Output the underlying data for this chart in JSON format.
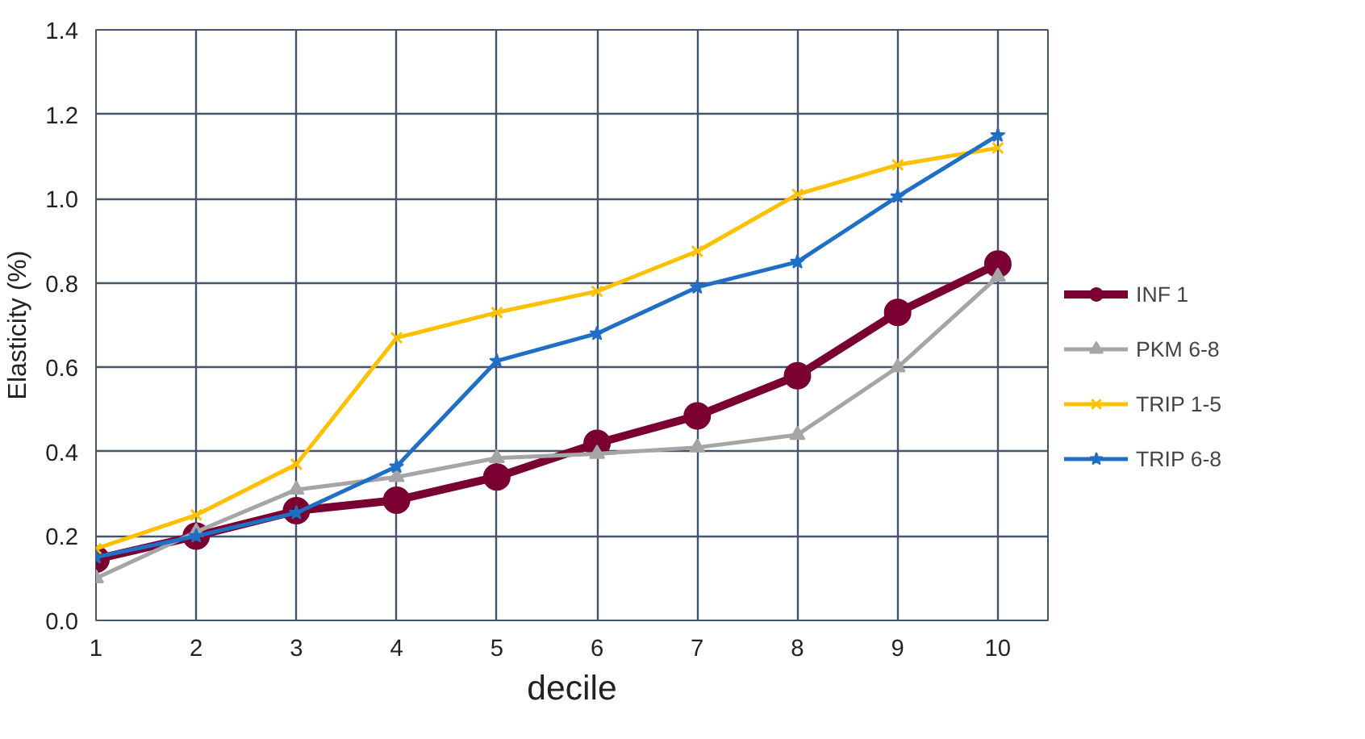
{
  "chart_data": {
    "type": "line",
    "xlabel": "decile",
    "ylabel": "Elasticity (%)",
    "x": [
      1,
      2,
      3,
      4,
      5,
      6,
      7,
      8,
      9,
      10
    ],
    "xlim": [
      1,
      10.5
    ],
    "xticks": [
      1,
      2,
      3,
      4,
      5,
      6,
      7,
      8,
      9,
      10
    ],
    "ylim": [
      0,
      1.4
    ],
    "yticks": [
      {
        "value": 0,
        "label": "0.0"
      },
      {
        "value": 0.2,
        "label": "0.2"
      },
      {
        "value": 0.4,
        "label": "0.4"
      },
      {
        "value": 0.6,
        "label": "0.6"
      },
      {
        "value": 0.8,
        "label": "0.8"
      },
      {
        "value": 1,
        "label": "1.0"
      },
      {
        "value": 1.2,
        "label": "1.2"
      },
      {
        "value": 1.4,
        "label": "1.4"
      }
    ],
    "grid": true,
    "legend": "right",
    "line_style": "solid",
    "series": [
      {
        "name": "INF 1",
        "color": "#7b0032",
        "marker": "circle",
        "values": [
          0.145,
          0.2,
          0.26,
          0.285,
          0.34,
          0.42,
          0.485,
          0.58,
          0.73,
          0.845
        ]
      },
      {
        "name": "PKM 6-8",
        "color": "#a5a5a5",
        "marker": "triangle",
        "values": [
          0.1,
          0.21,
          0.31,
          0.34,
          0.385,
          0.395,
          0.41,
          0.44,
          0.6,
          0.815
        ]
      },
      {
        "name": "TRIP 1-5",
        "color": "#ffc000",
        "marker": "cross",
        "values": [
          0.17,
          0.25,
          0.37,
          0.67,
          0.73,
          0.78,
          0.875,
          1.01,
          1.08,
          1.12
        ]
      },
      {
        "name": "TRIP 6-8",
        "color": "#1f6fc5",
        "marker": "star",
        "values": [
          0.15,
          0.2,
          0.255,
          0.365,
          0.615,
          0.68,
          0.79,
          0.85,
          1.005,
          1.15
        ]
      }
    ]
  }
}
